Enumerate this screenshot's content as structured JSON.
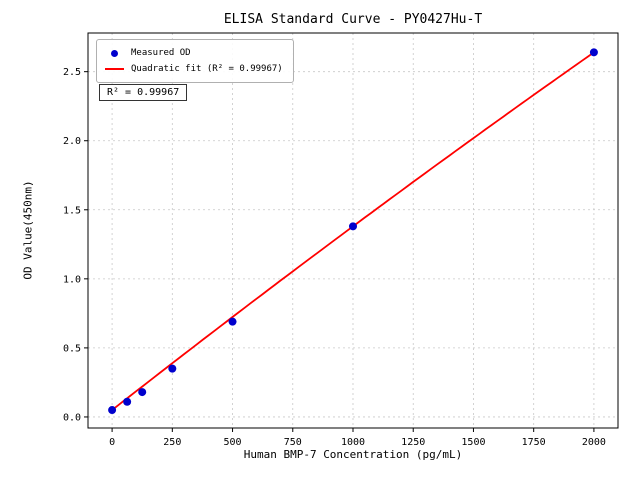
{
  "chart_data": {
    "type": "scatter",
    "title": "ELISA Standard Curve - PY0427Hu-T",
    "xlabel": "Human BMP-7 Concentration (pg/mL)",
    "ylabel": "OD Value(450nm)",
    "x": [
      0,
      62.5,
      125,
      250,
      500,
      1000,
      2000
    ],
    "y": [
      0.05,
      0.11,
      0.18,
      0.35,
      0.69,
      1.38,
      2.64
    ],
    "xticks": [
      0,
      250,
      500,
      750,
      1000,
      1250,
      1500,
      1750,
      2000
    ],
    "xtick_labels": [
      "0",
      "250",
      "500",
      "750",
      "1000",
      "1250",
      "1500",
      "1750",
      "2000"
    ],
    "yticks": [
      0.0,
      0.5,
      1.0,
      1.5,
      2.0,
      2.5
    ],
    "ytick_labels": [
      "0.0",
      "0.5",
      "1.0",
      "1.5",
      "2.0",
      "2.5"
    ],
    "xlim": [
      -100,
      2100
    ],
    "ylim": [
      -0.08,
      2.78
    ],
    "grid": true,
    "legend_position": "upper-left",
    "legend": [
      {
        "label": "Measured OD",
        "marker": "dot",
        "color": "#0000cd"
      },
      {
        "label": "Quadratic fit (R² = 0.99967)",
        "marker": "line",
        "color": "#ff0000"
      }
    ],
    "annotation": "R² = 0.99967",
    "fit": {
      "type": "quadratic",
      "a0": 0.05,
      "a1": 0.001365,
      "a2": -3.5e-08,
      "x_start": 0,
      "x_end": 2000,
      "r_squared": 0.99967
    },
    "colors": {
      "point": "#0000cd",
      "line": "#ff0000",
      "grid": "#c8c8c8",
      "axis": "#000000"
    }
  }
}
